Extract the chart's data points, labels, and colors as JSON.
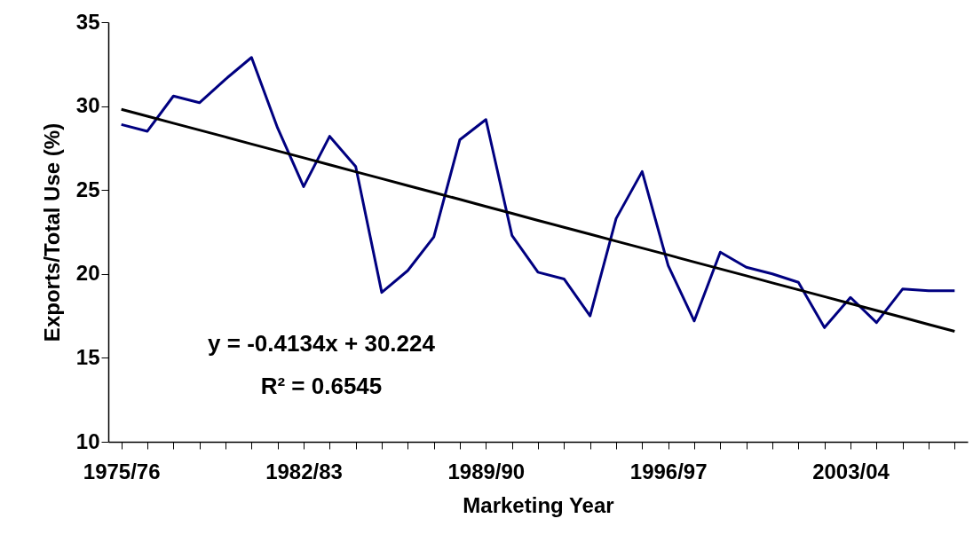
{
  "chart_data": {
    "type": "line",
    "xlabel": "Marketing Year",
    "ylabel": "Exports/Total Use (%)",
    "categories": [
      "1975/76",
      null,
      null,
      null,
      null,
      null,
      null,
      "1982/83",
      null,
      null,
      null,
      null,
      null,
      null,
      "1989/90",
      null,
      null,
      null,
      null,
      null,
      null,
      "1996/97",
      null,
      null,
      null,
      null,
      null,
      null,
      "2003/04",
      null,
      null,
      null,
      null
    ],
    "series": [
      {
        "color": "#000080",
        "values": [
          28.9,
          28.5,
          30.6,
          30.2,
          31.6,
          32.9,
          28.7,
          25.2,
          28.2,
          26.4,
          18.9,
          20.2,
          22.2,
          28.0,
          29.2,
          22.3,
          20.1,
          19.7,
          17.5,
          23.3,
          26.1,
          20.5,
          17.2,
          21.3,
          20.4,
          20.0,
          19.5,
          16.8,
          18.6,
          17.1,
          19.1,
          19.0,
          19.0
        ]
      },
      {
        "type": "line",
        "color": "#000000",
        "values": [
          29.81,
          29.4,
          28.98,
          28.57,
          28.16,
          27.74,
          27.33,
          26.92,
          26.5,
          26.09,
          25.68,
          25.26,
          24.85,
          24.44,
          24.02,
          23.61,
          23.19,
          22.78,
          22.37,
          21.95,
          21.54,
          21.13,
          20.71,
          20.3,
          19.89,
          19.47,
          19.06,
          18.65,
          18.23,
          17.82,
          17.41,
          16.99,
          16.58
        ]
      }
    ],
    "ylim": [
      10,
      35
    ],
    "yticks": [
      10,
      15,
      20,
      25,
      30,
      35
    ],
    "grid": false,
    "annotations": [
      "y = -0.4134x + 30.224",
      "R² = 0.6545"
    ]
  }
}
